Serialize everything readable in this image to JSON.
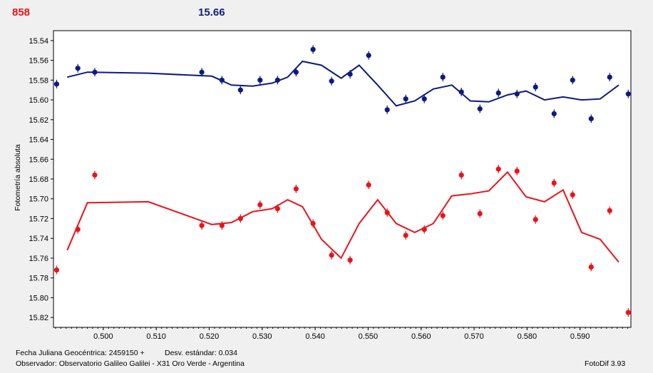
{
  "header": {
    "red_value": "858",
    "blue_value": "15.66"
  },
  "footer": {
    "jd_text": "Fecha Juliana Geocéntrica: 2459150 +",
    "std_text": "Desv. estándar: 0.034",
    "observer_text": "Observador: Observatorio Galileo Galilei - X31 Oro Verde - Argentina",
    "app_text": "FotoDif 3.93"
  },
  "chart_data": {
    "type": "scatter",
    "ylabel": "Fotometría absoluta",
    "xlabel": "",
    "xlim": [
      0.4906,
      0.5996
    ],
    "ylim": [
      15.53,
      15.83
    ],
    "y_inverted": true,
    "grid": false,
    "xticks": [
      "0.500",
      "0.510",
      "0.520",
      "0.530",
      "0.540",
      "0.550",
      "0.560",
      "0.570",
      "0.580",
      "0.590"
    ],
    "yticks": [
      "15.54",
      "15.56",
      "15.58",
      "15.60",
      "15.62",
      "15.64",
      "15.66",
      "15.68",
      "15.70",
      "15.72",
      "15.74",
      "15.76",
      "15.78",
      "15.80",
      "15.82"
    ],
    "colors": {
      "blue": "#0d1a7e",
      "red": "#e8141b"
    },
    "series": [
      {
        "color": "#0d1a7e",
        "points": [
          [
            0.4912,
            15.584
          ],
          [
            0.4952,
            15.568
          ],
          [
            0.4984,
            15.572
          ],
          [
            0.5186,
            15.572
          ],
          [
            0.5224,
            15.58
          ],
          [
            0.5259,
            15.59
          ],
          [
            0.5296,
            15.58
          ],
          [
            0.5329,
            15.58
          ],
          [
            0.5364,
            15.572
          ],
          [
            0.5396,
            15.549
          ],
          [
            0.5431,
            15.581
          ],
          [
            0.5466,
            15.574
          ],
          [
            0.5501,
            15.555
          ],
          [
            0.5536,
            15.61
          ],
          [
            0.5571,
            15.599
          ],
          [
            0.5606,
            15.599
          ],
          [
            0.5641,
            15.577
          ],
          [
            0.5676,
            15.592
          ],
          [
            0.5711,
            15.609
          ],
          [
            0.5746,
            15.593
          ],
          [
            0.5781,
            15.594
          ],
          [
            0.5816,
            15.587
          ],
          [
            0.5851,
            15.614
          ],
          [
            0.5886,
            15.58
          ],
          [
            0.5921,
            15.619
          ],
          [
            0.5956,
            15.577
          ],
          [
            0.5991,
            15.594
          ]
        ],
        "line": [
          [
            0.4932,
            15.577
          ],
          [
            0.497,
            15.572
          ],
          [
            0.5085,
            15.573
          ],
          [
            0.5205,
            15.576
          ],
          [
            0.5242,
            15.585
          ],
          [
            0.5282,
            15.586
          ],
          [
            0.5319,
            15.583
          ],
          [
            0.5348,
            15.577
          ],
          [
            0.5376,
            15.561
          ],
          [
            0.5412,
            15.565
          ],
          [
            0.5449,
            15.578
          ],
          [
            0.5483,
            15.565
          ],
          [
            0.5518,
            15.585
          ],
          [
            0.5553,
            15.606
          ],
          [
            0.5588,
            15.601
          ],
          [
            0.5623,
            15.589
          ],
          [
            0.5658,
            15.585
          ],
          [
            0.5693,
            15.601
          ],
          [
            0.5728,
            15.602
          ],
          [
            0.5763,
            15.595
          ],
          [
            0.5798,
            15.591
          ],
          [
            0.5833,
            15.6
          ],
          [
            0.5868,
            15.597
          ],
          [
            0.5903,
            15.6
          ],
          [
            0.5938,
            15.599
          ],
          [
            0.5973,
            15.585
          ]
        ]
      },
      {
        "color": "#e8141b",
        "points": [
          [
            0.4912,
            15.772
          ],
          [
            0.4952,
            15.731
          ],
          [
            0.4984,
            15.676
          ],
          [
            0.5186,
            15.727
          ],
          [
            0.5224,
            15.727
          ],
          [
            0.5259,
            15.72
          ],
          [
            0.5296,
            15.706
          ],
          [
            0.5329,
            15.71
          ],
          [
            0.5364,
            15.69
          ],
          [
            0.5396,
            15.725
          ],
          [
            0.5431,
            15.757
          ],
          [
            0.5466,
            15.762
          ],
          [
            0.5501,
            15.686
          ],
          [
            0.5536,
            15.714
          ],
          [
            0.5571,
            15.737
          ],
          [
            0.5606,
            15.731
          ],
          [
            0.5641,
            15.717
          ],
          [
            0.5676,
            15.676
          ],
          [
            0.5711,
            15.715
          ],
          [
            0.5746,
            15.67
          ],
          [
            0.5781,
            15.672
          ],
          [
            0.5816,
            15.721
          ],
          [
            0.5851,
            15.684
          ],
          [
            0.5886,
            15.696
          ],
          [
            0.5921,
            15.769
          ],
          [
            0.5956,
            15.712
          ],
          [
            0.5991,
            15.815
          ]
        ],
        "line": [
          [
            0.4932,
            15.752
          ],
          [
            0.497,
            15.704
          ],
          [
            0.5085,
            15.703
          ],
          [
            0.5205,
            15.726
          ],
          [
            0.5242,
            15.724
          ],
          [
            0.5282,
            15.713
          ],
          [
            0.5319,
            15.71
          ],
          [
            0.5348,
            15.701
          ],
          [
            0.5376,
            15.708
          ],
          [
            0.5412,
            15.741
          ],
          [
            0.5449,
            15.76
          ],
          [
            0.5483,
            15.725
          ],
          [
            0.5518,
            15.701
          ],
          [
            0.5553,
            15.725
          ],
          [
            0.5588,
            15.734
          ],
          [
            0.5623,
            15.725
          ],
          [
            0.5658,
            15.697
          ],
          [
            0.5693,
            15.695
          ],
          [
            0.5728,
            15.692
          ],
          [
            0.5763,
            15.673
          ],
          [
            0.5798,
            15.698
          ],
          [
            0.5833,
            15.703
          ],
          [
            0.5868,
            15.691
          ],
          [
            0.5903,
            15.734
          ],
          [
            0.5938,
            15.741
          ],
          [
            0.5973,
            15.764
          ]
        ]
      }
    ]
  }
}
